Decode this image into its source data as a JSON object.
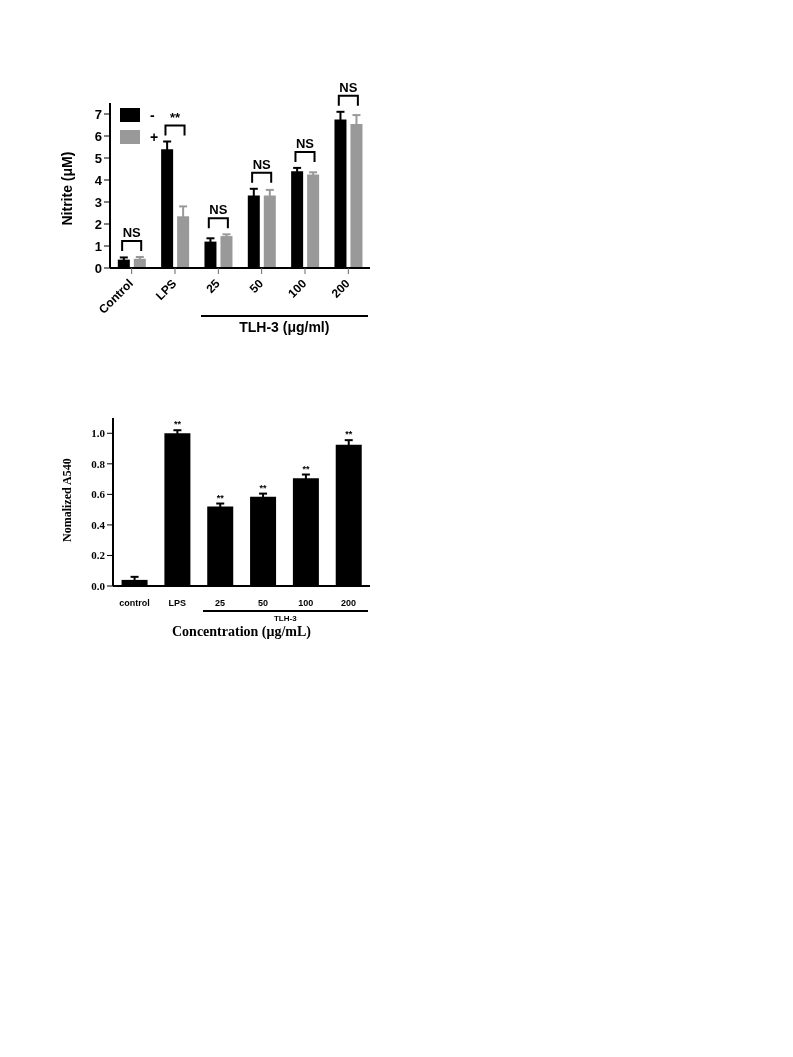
{
  "chart_data": [
    {
      "type": "bar",
      "ylabel": "Nitrite (μM)",
      "xlabel": "TLH-3 (μg/ml)",
      "categories": [
        "Control",
        "LPS",
        "25",
        "50",
        "100",
        "200"
      ],
      "ylim": [
        0,
        7.5
      ],
      "yticks": [
        0,
        1,
        2,
        3,
        4,
        5,
        6,
        7
      ],
      "legend": "top left",
      "grid": false,
      "series": [
        {
          "name": "-",
          "color": "#000000",
          "values": [
            0.38,
            5.4,
            1.2,
            3.3,
            4.4,
            6.75
          ],
          "errors": [
            0.1,
            0.35,
            0.15,
            0.3,
            0.15,
            0.35
          ]
        },
        {
          "name": "+",
          "color": "#999999",
          "values": [
            0.42,
            2.35,
            1.45,
            3.3,
            4.25,
            6.55
          ],
          "errors": [
            0.08,
            0.45,
            0.08,
            0.25,
            0.1,
            0.4
          ]
        }
      ],
      "annotations": [
        "NS",
        "**",
        "NS",
        "NS",
        "NS",
        "NS"
      ]
    },
    {
      "type": "bar",
      "ylabel": "Nomalized A540",
      "xlabel": "Concentration (μg/mL)",
      "categories": [
        "control",
        "LPS",
        "25",
        "50",
        "100",
        "200"
      ],
      "ylim": [
        0,
        1.1
      ],
      "yticks": [
        {
          "value": 0,
          "label": "0.0"
        },
        0.2,
        0.4,
        0.6,
        0.8,
        {
          "value": 1,
          "label": "1.0"
        }
      ],
      "grid": false,
      "series": [
        {
          "color": "#000000",
          "values": [
            0.04,
            1.0,
            0.52,
            0.585,
            0.705,
            0.925
          ],
          "errors": [
            0.02,
            0.02,
            0.02,
            0.02,
            0.025,
            0.03
          ],
          "value_labels": [
            null,
            "**",
            "**",
            "**",
            "**",
            "**"
          ]
        }
      ],
      "annotations": [
        "TLH-3"
      ]
    }
  ]
}
